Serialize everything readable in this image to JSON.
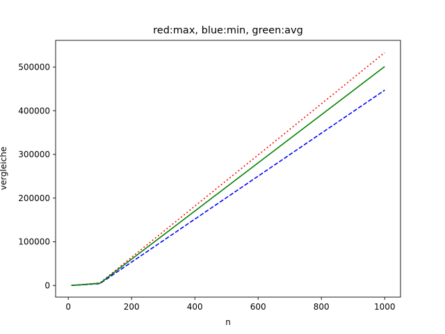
{
  "chart_data": {
    "type": "line",
    "title": "red:max, blue:min, green:avg",
    "xlabel": "n",
    "ylabel": "vergleiche",
    "xlim": [
      -40,
      1050
    ],
    "ylim": [
      -26700,
      561000
    ],
    "xticks": [
      0,
      200,
      400,
      600,
      800,
      1000
    ],
    "yticks": [
      0,
      100000,
      200000,
      300000,
      400000,
      500000
    ],
    "grid": false,
    "series": [
      {
        "name": "max",
        "color": "#ff0000",
        "linestyle": "dotted",
        "x": [
          10,
          50,
          100,
          1000
        ],
        "y": [
          200,
          2500,
          5800,
          533000
        ]
      },
      {
        "name": "min",
        "color": "#0000ff",
        "linestyle": "dashed",
        "x": [
          10,
          50,
          100,
          1000
        ],
        "y": [
          100,
          1800,
          4200,
          447000
        ]
      },
      {
        "name": "avg",
        "color": "#008000",
        "linestyle": "solid",
        "x": [
          10,
          50,
          100,
          1000
        ],
        "y": [
          150,
          2100,
          5000,
          501000
        ]
      }
    ]
  }
}
